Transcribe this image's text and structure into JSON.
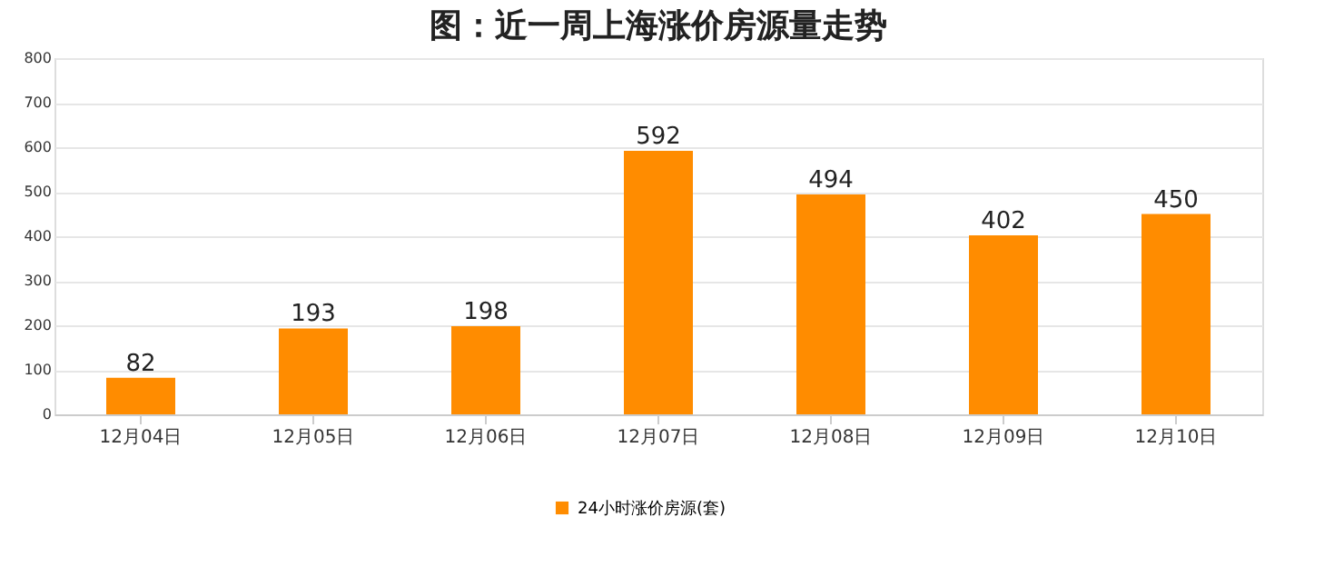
{
  "chart_data": {
    "type": "bar",
    "title": "图：近一周上海涨价房源量走势",
    "categories": [
      "12月04日",
      "12月05日",
      "12月06日",
      "12月07日",
      "12月08日",
      "12月09日",
      "12月10日"
    ],
    "series": [
      {
        "name": "24小时涨价房源(套)",
        "color": "#ff8c00",
        "values": [
          82,
          193,
          198,
          592,
          494,
          402,
          450
        ]
      }
    ],
    "ylim": [
      0,
      800
    ],
    "yticks": [
      0,
      100,
      200,
      300,
      400,
      500,
      600,
      700,
      800
    ],
    "grid": "y",
    "legend": "bottom",
    "data_labels": true
  }
}
